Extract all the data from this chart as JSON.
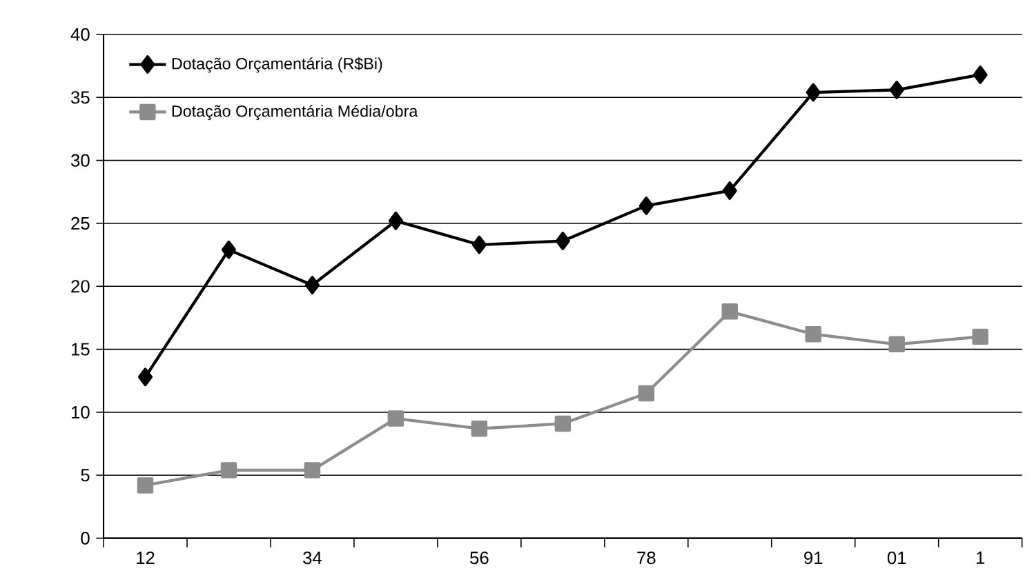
{
  "chart_data": {
    "type": "line",
    "categories": [
      "12",
      null,
      "34",
      null,
      "56",
      null,
      "78",
      null,
      "91",
      "01",
      "1"
    ],
    "series": [
      {
        "name": "Dotação Orçamentária (R$Bi)",
        "color": "#000000",
        "marker": "diamond",
        "values": [
          12.8,
          22.9,
          20.1,
          25.2,
          23.3,
          23.6,
          26.4,
          27.6,
          35.4,
          35.6,
          36.8
        ]
      },
      {
        "name": "Dotação Orçamentária Média/obra",
        "color": "#8c8c8c",
        "marker": "square",
        "values": [
          4.2,
          5.4,
          5.4,
          9.5,
          8.7,
          9.1,
          11.5,
          18.0,
          16.2,
          15.4,
          16.0
        ]
      }
    ],
    "ylim": [
      0,
      40
    ],
    "yticks": [
      0,
      5,
      10,
      15,
      20,
      25,
      30,
      35,
      40
    ],
    "grid": "y",
    "legend": "top left",
    "line_style": "solid"
  }
}
